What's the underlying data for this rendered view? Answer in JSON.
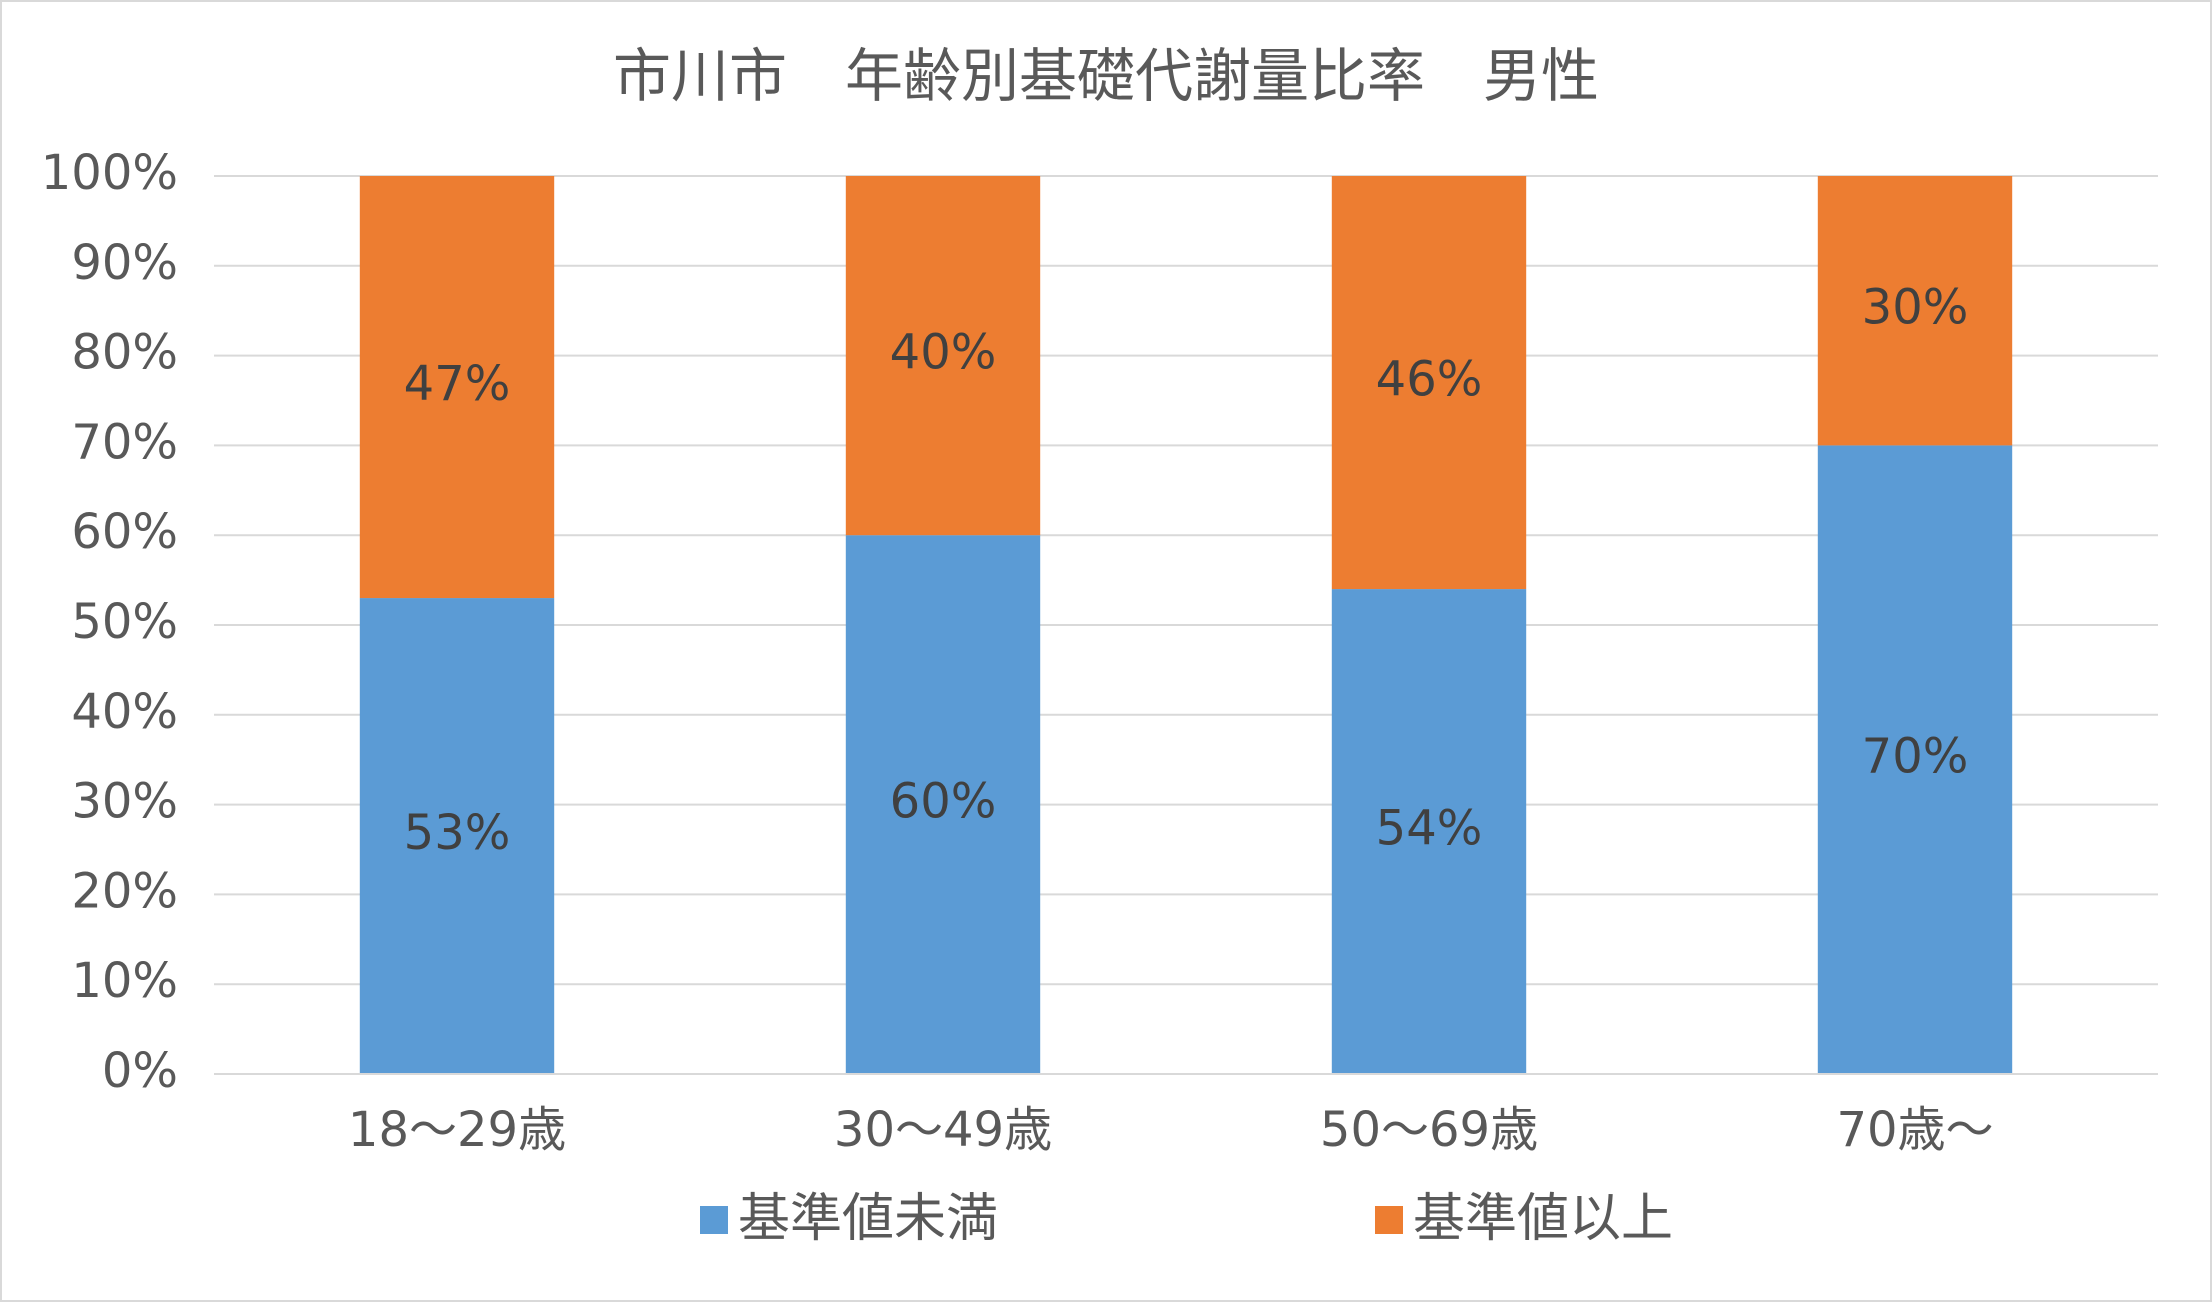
{
  "chart_data": {
    "type": "stacked_bar",
    "title": "市川市　年齢別基礎代謝量比率　男性",
    "categories": [
      "18～29歳",
      "30～49歳",
      "50～69歳",
      "70歳～"
    ],
    "series": [
      {
        "name": "基準値未満",
        "color": "#5b9bd5",
        "values": [
          53,
          60,
          54,
          70
        ],
        "value_labels": [
          "53%",
          "60%",
          "54%",
          "70%"
        ]
      },
      {
        "name": "基準値以上",
        "color": "#ed7d31",
        "values": [
          47,
          40,
          46,
          30
        ],
        "value_labels": [
          "47%",
          "40%",
          "46%",
          "30%"
        ]
      }
    ],
    "ylim": [
      0,
      100
    ],
    "yticks": [
      {
        "value": 0,
        "label": "0%"
      },
      {
        "value": 10,
        "label": "10%"
      },
      {
        "value": 20,
        "label": "20%"
      },
      {
        "value": 30,
        "label": "30%"
      },
      {
        "value": 40,
        "label": "40%"
      },
      {
        "value": 50,
        "label": "50%"
      },
      {
        "value": 60,
        "label": "60%"
      },
      {
        "value": 70,
        "label": "70%"
      },
      {
        "value": 80,
        "label": "80%"
      },
      {
        "value": 90,
        "label": "90%"
      },
      {
        "value": 100,
        "label": "100%"
      }
    ],
    "grid": true,
    "legend": "bottom"
  }
}
